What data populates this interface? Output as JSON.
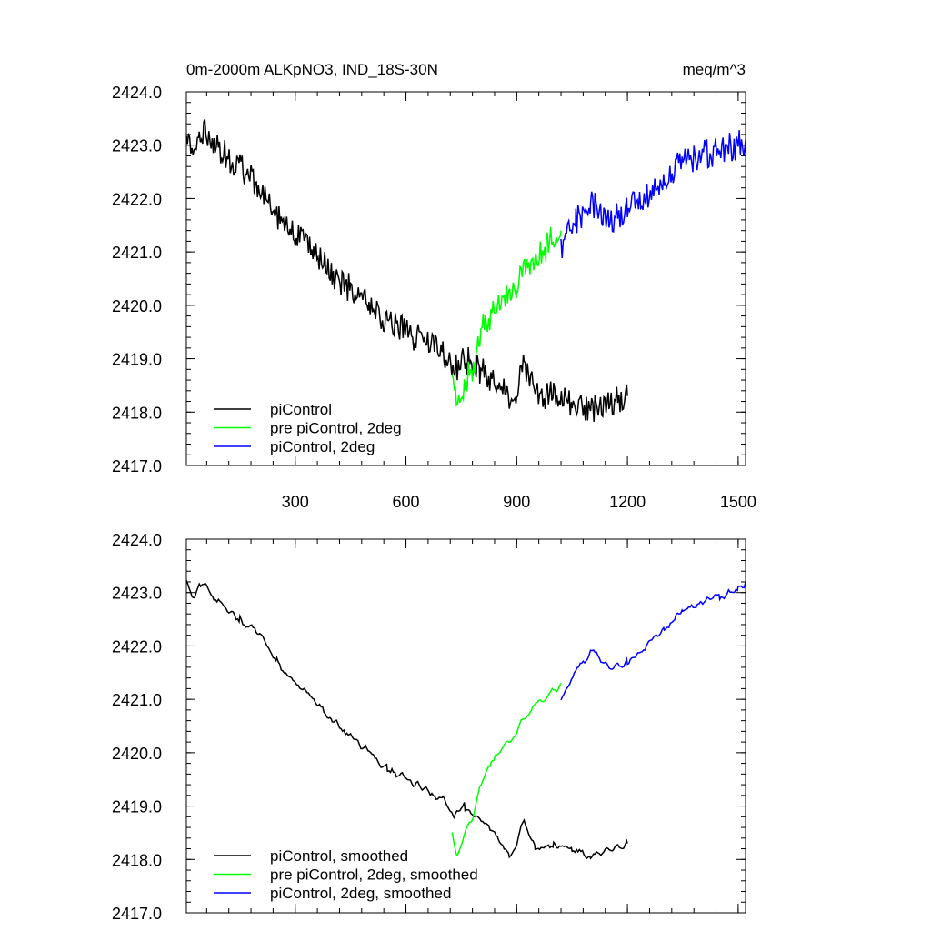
{
  "header": {
    "title": "0m-2000m ALKpNO3, IND_18S-30N",
    "units": "meq/m^3"
  },
  "chart_data": [
    {
      "type": "line",
      "panel": "raw",
      "xlim": [
        5,
        1520
      ],
      "ylim": [
        2417.0,
        2424.0
      ],
      "x_ticks": [
        300,
        600,
        900,
        1200,
        1500
      ],
      "x_tick_labels": [
        "300",
        "600",
        "900",
        "1200",
        "1500"
      ],
      "y_ticks": [
        2417,
        2418,
        2419,
        2420,
        2421,
        2422,
        2423,
        2424
      ],
      "y_tick_labels": [
        "2417.0",
        "2418.0",
        "2419.0",
        "2420.0",
        "2421.0",
        "2422.0",
        "2423.0",
        "2424.0"
      ],
      "legend_position": "bottom-left",
      "series": [
        {
          "name": "piControl",
          "color": "#000000",
          "x": [
            5,
            20,
            40,
            60,
            80,
            100,
            150,
            200,
            250,
            300,
            350,
            400,
            450,
            500,
            550,
            600,
            650,
            700,
            730,
            760,
            800,
            850,
            880,
            900,
            920,
            950,
            1000,
            1050,
            1100,
            1150,
            1200
          ],
          "y": [
            2423.2,
            2422.8,
            2423.2,
            2423.3,
            2423.0,
            2422.9,
            2422.6,
            2422.2,
            2421.7,
            2421.3,
            2421.0,
            2420.6,
            2420.3,
            2420.0,
            2419.7,
            2419.5,
            2419.3,
            2419.1,
            2418.8,
            2419.0,
            2418.8,
            2418.5,
            2418.2,
            2418.4,
            2418.9,
            2418.3,
            2418.3,
            2418.2,
            2418.0,
            2418.2,
            2418.3
          ]
        },
        {
          "name": "pre piControl, 2deg",
          "color": "#00ff00",
          "x": [
            725,
            740,
            760,
            780,
            800,
            830,
            860,
            900,
            940,
            980,
            1020
          ],
          "y": [
            2418.6,
            2418.0,
            2418.6,
            2418.8,
            2419.5,
            2419.8,
            2420.2,
            2420.4,
            2420.8,
            2421.1,
            2421.4
          ]
        },
        {
          "name": "piControl, 2deg",
          "color": "#0000ff",
          "x": [
            1020,
            1060,
            1100,
            1150,
            1200,
            1250,
            1300,
            1350,
            1400,
            1450,
            1500,
            1520
          ],
          "y": [
            2421.1,
            2421.6,
            2421.9,
            2421.6,
            2421.8,
            2422.0,
            2422.3,
            2422.7,
            2422.8,
            2422.9,
            2423.0,
            2423.1
          ]
        }
      ]
    },
    {
      "type": "line",
      "panel": "smoothed",
      "xlim": [
        5,
        1520
      ],
      "ylim": [
        2417.0,
        2424.0
      ],
      "y_ticks": [
        2417,
        2418,
        2419,
        2420,
        2421,
        2422,
        2423,
        2424
      ],
      "y_tick_labels": [
        "2417.0",
        "2418.0",
        "2419.0",
        "2420.0",
        "2421.0",
        "2422.0",
        "2423.0",
        "2424.0"
      ],
      "legend_position": "bottom-left",
      "series": [
        {
          "name": "piControl, smoothed",
          "color": "#000000",
          "x": [
            5,
            20,
            40,
            60,
            80,
            100,
            150,
            200,
            250,
            300,
            350,
            400,
            450,
            500,
            550,
            600,
            650,
            700,
            730,
            760,
            800,
            850,
            880,
            900,
            920,
            950,
            1000,
            1050,
            1100,
            1150,
            1200
          ],
          "y": [
            2423.2,
            2422.9,
            2423.1,
            2423.2,
            2422.9,
            2422.8,
            2422.5,
            2422.2,
            2421.7,
            2421.3,
            2421.0,
            2420.6,
            2420.3,
            2420.0,
            2419.7,
            2419.5,
            2419.3,
            2419.1,
            2418.8,
            2419.0,
            2418.8,
            2418.4,
            2418.1,
            2418.3,
            2418.7,
            2418.2,
            2418.3,
            2418.2,
            2418.0,
            2418.2,
            2418.3
          ]
        },
        {
          "name": "pre piControl, 2deg, smoothed",
          "color": "#00ff00",
          "x": [
            725,
            740,
            760,
            780,
            800,
            830,
            860,
            900,
            940,
            980,
            1020
          ],
          "y": [
            2418.5,
            2418.0,
            2418.6,
            2418.8,
            2419.4,
            2419.8,
            2420.1,
            2420.4,
            2420.8,
            2421.0,
            2421.3
          ]
        },
        {
          "name": "piControl, 2deg, smoothed",
          "color": "#0000ff",
          "x": [
            1020,
            1060,
            1100,
            1150,
            1200,
            1250,
            1300,
            1350,
            1400,
            1450,
            1500,
            1520
          ],
          "y": [
            2421.0,
            2421.5,
            2421.9,
            2421.6,
            2421.7,
            2422.0,
            2422.3,
            2422.7,
            2422.8,
            2422.9,
            2423.1,
            2423.2
          ]
        }
      ]
    }
  ]
}
